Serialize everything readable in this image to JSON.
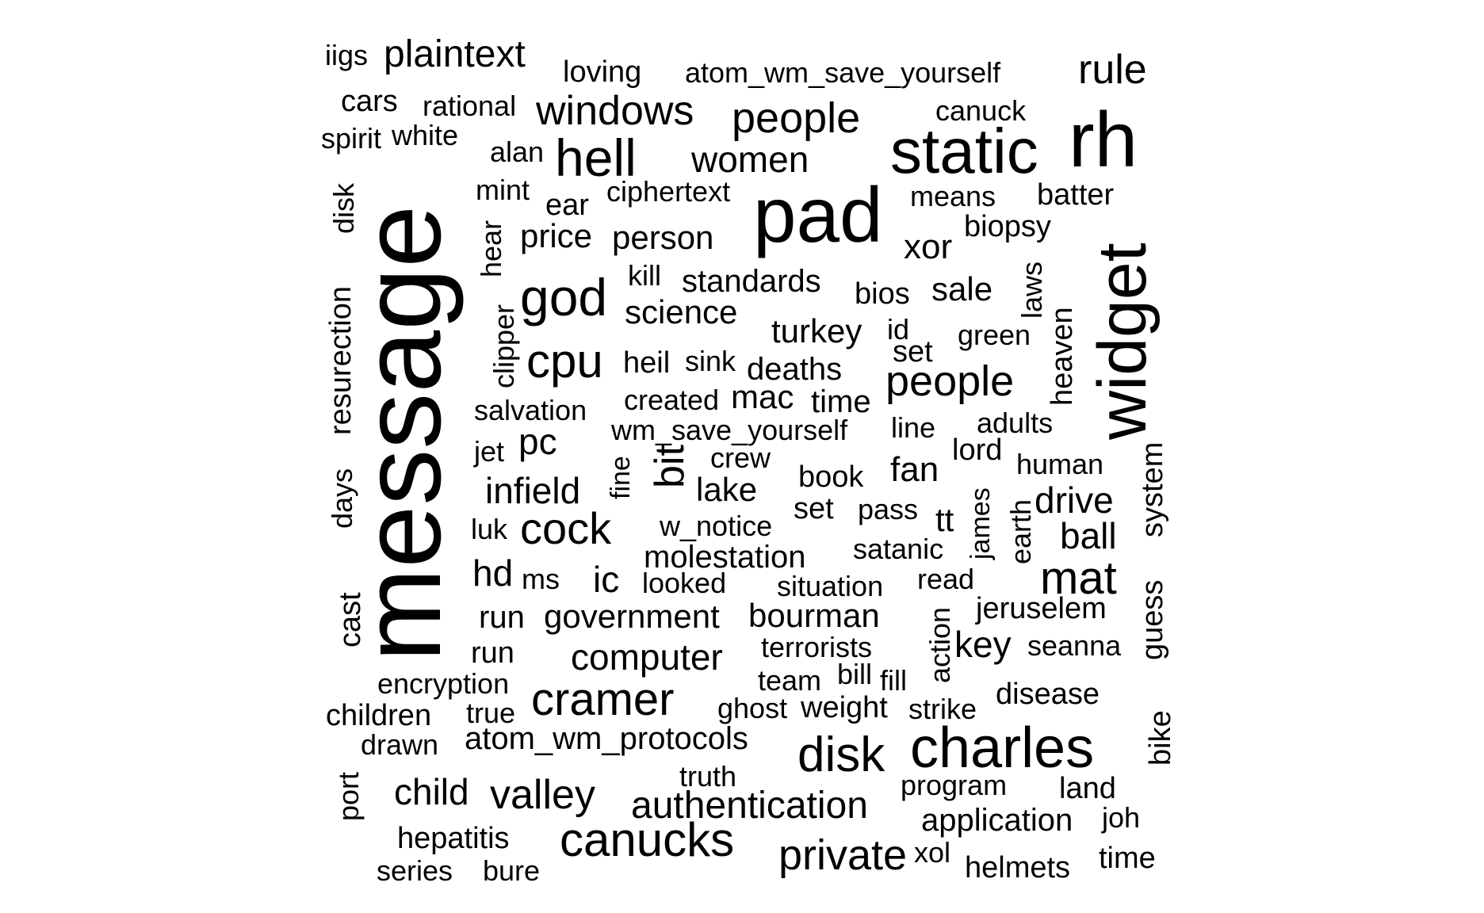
{
  "word_cloud": {
    "words": [
      {
        "text": "message",
        "size": 142,
        "rot": -90
      },
      {
        "text": "pad",
        "size": 98,
        "rot": 0
      },
      {
        "text": "rh",
        "size": 98,
        "rot": 0
      },
      {
        "text": "widget",
        "size": 86,
        "rot": -90
      },
      {
        "text": "static",
        "size": 80,
        "rot": 0
      },
      {
        "text": "charles",
        "size": 72,
        "rot": 0
      },
      {
        "text": "hell",
        "size": 66,
        "rot": 0
      },
      {
        "text": "god",
        "size": 66,
        "rot": 0
      },
      {
        "text": "disk",
        "size": 62,
        "rot": 0
      },
      {
        "text": "cpu",
        "size": 60,
        "rot": 0
      },
      {
        "text": "canucks",
        "size": 60,
        "rot": 0
      },
      {
        "text": "cramer",
        "size": 58,
        "rot": 0
      },
      {
        "text": "mat",
        "size": 58,
        "rot": 0
      },
      {
        "text": "cock",
        "size": 56,
        "rot": 0
      },
      {
        "text": "people",
        "size": 54,
        "rot": 0
      },
      {
        "text": "people",
        "size": 54,
        "rot": 0
      },
      {
        "text": "private",
        "size": 54,
        "rot": 0
      },
      {
        "text": "windows",
        "size": 52,
        "rot": 0
      },
      {
        "text": "rule",
        "size": 52,
        "rot": 0
      },
      {
        "text": "valley",
        "size": 52,
        "rot": 0
      },
      {
        "text": "bit",
        "size": 52,
        "rot": -90
      },
      {
        "text": "plaintext",
        "size": 48,
        "rot": 0
      },
      {
        "text": "authentication",
        "size": 48,
        "rot": 0
      },
      {
        "text": "women",
        "size": 46,
        "rot": 0
      },
      {
        "text": "child",
        "size": 46,
        "rot": 0
      },
      {
        "text": "drive",
        "size": 46,
        "rot": 0
      },
      {
        "text": "ball",
        "size": 46,
        "rot": 0
      },
      {
        "text": "key",
        "size": 46,
        "rot": 0
      },
      {
        "text": "computer",
        "size": 46,
        "rot": 0
      },
      {
        "text": "infield",
        "size": 46,
        "rot": 0
      },
      {
        "text": "pc",
        "size": 46,
        "rot": 0
      },
      {
        "text": "ic",
        "size": 46,
        "rot": 0
      },
      {
        "text": "hd",
        "size": 46,
        "rot": 0
      },
      {
        "text": "fan",
        "size": 44,
        "rot": 0
      },
      {
        "text": "xor",
        "size": 44,
        "rot": 0
      },
      {
        "text": "science",
        "size": 42,
        "rot": 0
      },
      {
        "text": "person",
        "size": 42,
        "rot": 0
      },
      {
        "text": "price",
        "size": 42,
        "rot": 0
      },
      {
        "text": "turkey",
        "size": 42,
        "rot": 0
      },
      {
        "text": "lake",
        "size": 42,
        "rot": 0
      },
      {
        "text": "mac",
        "size": 42,
        "rot": 0
      },
      {
        "text": "bourman",
        "size": 42,
        "rot": 0
      },
      {
        "text": "government",
        "size": 42,
        "rot": 0
      },
      {
        "text": "sale",
        "size": 42,
        "rot": 0
      },
      {
        "text": "tt",
        "size": 42,
        "rot": 0
      },
      {
        "text": "application",
        "size": 40,
        "rot": 0
      },
      {
        "text": "standards",
        "size": 40,
        "rot": 0
      },
      {
        "text": "deaths",
        "size": 40,
        "rot": 0
      },
      {
        "text": "molestation",
        "size": 40,
        "rot": 0
      },
      {
        "text": "atom_wm_protocols",
        "size": 40,
        "rot": 0
      },
      {
        "text": "time",
        "size": 40,
        "rot": 0
      },
      {
        "text": "run",
        "size": 40,
        "rot": 0
      },
      {
        "text": "heil",
        "size": 38,
        "rot": 0
      },
      {
        "text": "loving",
        "size": 38,
        "rot": 0
      },
      {
        "text": "batter",
        "size": 38,
        "rot": 0
      },
      {
        "text": "ear",
        "size": 38,
        "rot": 0
      },
      {
        "text": "bios",
        "size": 38,
        "rot": 0
      },
      {
        "text": "biopsy",
        "size": 38,
        "rot": 0
      },
      {
        "text": "cars",
        "size": 38,
        "rot": 0
      },
      {
        "text": "land",
        "size": 38,
        "rot": 0
      },
      {
        "text": "book",
        "size": 38,
        "rot": 0
      },
      {
        "text": "disease",
        "size": 38,
        "rot": 0
      },
      {
        "text": "hepatitis",
        "size": 38,
        "rot": 0
      },
      {
        "text": "children",
        "size": 38,
        "rot": 0
      },
      {
        "text": "helmets",
        "size": 38,
        "rot": 0
      },
      {
        "text": "lord",
        "size": 38,
        "rot": 0
      },
      {
        "text": "set",
        "size": 38,
        "rot": 0
      },
      {
        "text": "set",
        "size": 38,
        "rot": 0
      },
      {
        "text": "run",
        "size": 38,
        "rot": 0
      },
      {
        "text": "time",
        "size": 38,
        "rot": 0
      },
      {
        "text": "weight",
        "size": 38,
        "rot": 0
      },
      {
        "text": "jeruselem",
        "size": 38,
        "rot": 0
      },
      {
        "text": "heaven",
        "size": 38,
        "rot": -90
      },
      {
        "text": "bike",
        "size": 38,
        "rot": -90
      },
      {
        "text": "resurection",
        "size": 38,
        "rot": -90
      },
      {
        "text": "cast",
        "size": 38,
        "rot": -90
      },
      {
        "text": "atom_wm_save_yourself",
        "size": 36,
        "rot": 0
      },
      {
        "text": "wm_save_yourself",
        "size": 36,
        "rot": 0
      },
      {
        "text": "rational",
        "size": 36,
        "rot": 0
      },
      {
        "text": "salvation",
        "size": 36,
        "rot": 0
      },
      {
        "text": "canuck",
        "size": 36,
        "rot": 0
      },
      {
        "text": "means",
        "size": 36,
        "rot": 0
      },
      {
        "text": "green",
        "size": 36,
        "rot": 0
      },
      {
        "text": "alan",
        "size": 36,
        "rot": 0
      },
      {
        "text": "created",
        "size": 36,
        "rot": 0
      },
      {
        "text": "iigs",
        "size": 36,
        "rot": 0
      },
      {
        "text": "ciphertext",
        "size": 36,
        "rot": 0
      },
      {
        "text": "white",
        "size": 36,
        "rot": 0
      },
      {
        "text": "spirit",
        "size": 36,
        "rot": 0
      },
      {
        "text": "mint",
        "size": 36,
        "rot": 0
      },
      {
        "text": "kill",
        "size": 36,
        "rot": 0
      },
      {
        "text": "sink",
        "size": 36,
        "rot": 0
      },
      {
        "text": "line",
        "size": 36,
        "rot": 0
      },
      {
        "text": "adults",
        "size": 36,
        "rot": 0
      },
      {
        "text": "human",
        "size": 36,
        "rot": 0
      },
      {
        "text": "crew",
        "size": 36,
        "rot": 0
      },
      {
        "text": "pass",
        "size": 36,
        "rot": 0
      },
      {
        "text": "w_notice",
        "size": 36,
        "rot": 0
      },
      {
        "text": "satanic",
        "size": 36,
        "rot": 0
      },
      {
        "text": "looked",
        "size": 36,
        "rot": 0
      },
      {
        "text": "situation",
        "size": 36,
        "rot": 0
      },
      {
        "text": "read",
        "size": 36,
        "rot": 0
      },
      {
        "text": "terrorists",
        "size": 36,
        "rot": 0
      },
      {
        "text": "seanna",
        "size": 36,
        "rot": 0
      },
      {
        "text": "encryption",
        "size": 36,
        "rot": 0
      },
      {
        "text": "team",
        "size": 36,
        "rot": 0
      },
      {
        "text": "bill",
        "size": 36,
        "rot": 0
      },
      {
        "text": "fill",
        "size": 36,
        "rot": 0
      },
      {
        "text": "true",
        "size": 36,
        "rot": 0
      },
      {
        "text": "ghost",
        "size": 36,
        "rot": 0
      },
      {
        "text": "strike",
        "size": 36,
        "rot": 0
      },
      {
        "text": "drawn",
        "size": 36,
        "rot": 0
      },
      {
        "text": "truth",
        "size": 36,
        "rot": 0
      },
      {
        "text": "program",
        "size": 36,
        "rot": 0
      },
      {
        "text": "joh",
        "size": 36,
        "rot": 0
      },
      {
        "text": "xol",
        "size": 36,
        "rot": 0
      },
      {
        "text": "series",
        "size": 36,
        "rot": 0
      },
      {
        "text": "bure",
        "size": 36,
        "rot": 0
      },
      {
        "text": "id",
        "size": 36,
        "rot": 0
      },
      {
        "text": "jet",
        "size": 36,
        "rot": 0
      },
      {
        "text": "luk",
        "size": 36,
        "rot": 0
      },
      {
        "text": "ms",
        "size": 36,
        "rot": 0
      },
      {
        "text": "hear",
        "size": 36,
        "rot": -90
      },
      {
        "text": "clipper",
        "size": 36,
        "rot": -90
      },
      {
        "text": "laws",
        "size": 36,
        "rot": -90
      },
      {
        "text": "earth",
        "size": 36,
        "rot": -90
      },
      {
        "text": "james",
        "size": 34,
        "rot": -90
      },
      {
        "text": "system",
        "size": 38,
        "rot": -90
      },
      {
        "text": "guess",
        "size": 38,
        "rot": -90
      },
      {
        "text": "action",
        "size": 36,
        "rot": -90
      },
      {
        "text": "days",
        "size": 36,
        "rot": -90
      },
      {
        "text": "disk",
        "size": 36,
        "rot": -90
      },
      {
        "text": "port",
        "size": 36,
        "rot": -90
      },
      {
        "text": "fine",
        "size": 34,
        "rot": -90
      }
    ]
  }
}
